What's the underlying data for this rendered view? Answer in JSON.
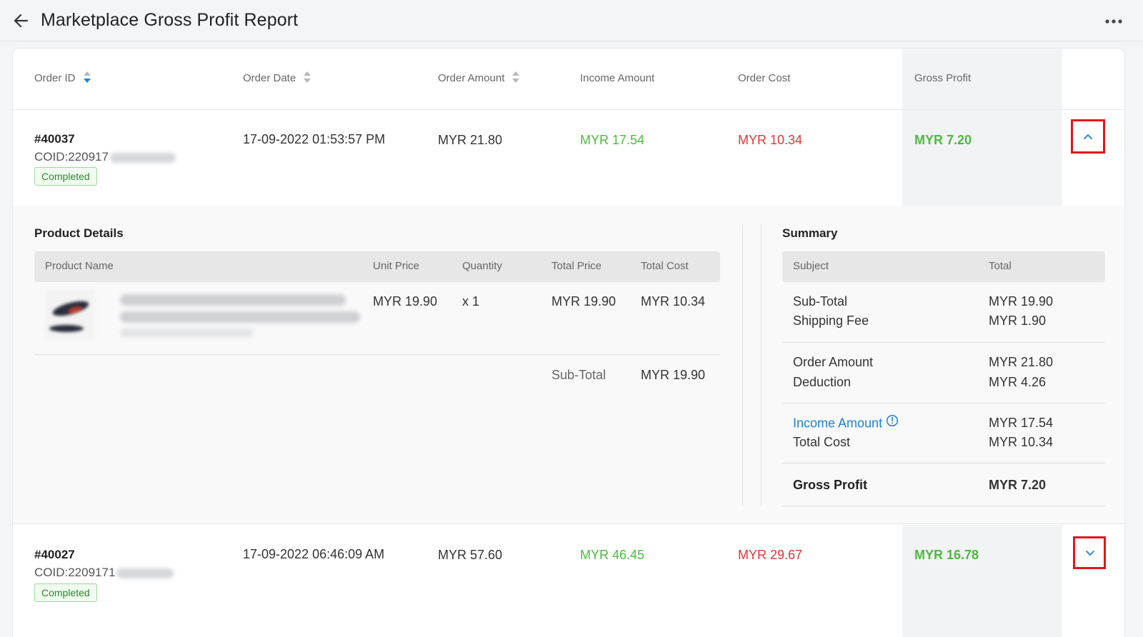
{
  "header": {
    "title": "Marketplace Gross Profit Report"
  },
  "columns": {
    "order_id": "Order ID",
    "order_date": "Order Date",
    "order_amount": "Order Amount",
    "income_amount": "Income Amount",
    "order_cost": "Order Cost",
    "gross_profit": "Gross Profit"
  },
  "orders": [
    {
      "id": "#40037",
      "coid": "COID:220917",
      "status": "Completed",
      "date": "17-09-2022 01:53:57 PM",
      "amount": "MYR 21.80",
      "income": "MYR 17.54",
      "cost": "MYR 10.34",
      "gross_profit": "MYR 7.20",
      "expanded": true
    },
    {
      "id": "#40027",
      "coid": "COID:2209171",
      "status": "Completed",
      "date": "17-09-2022 06:46:09 AM",
      "amount": "MYR 57.60",
      "income": "MYR 46.45",
      "cost": "MYR 29.67",
      "gross_profit": "MYR 16.78",
      "expanded": false
    }
  ],
  "product_details": {
    "title": "Product Details",
    "columns": {
      "name": "Product Name",
      "unit_price": "Unit Price",
      "quantity": "Quantity",
      "total_price": "Total Price",
      "total_cost": "Total Cost"
    },
    "items": [
      {
        "unit_price": "MYR 19.90",
        "quantity": "x 1",
        "total_price": "MYR 19.90",
        "total_cost": "MYR 10.34"
      }
    ],
    "subtotal_label": "Sub-Total",
    "subtotal_value": "MYR 19.90"
  },
  "summary": {
    "title": "Summary",
    "col_subject": "Subject",
    "col_total": "Total",
    "sub_total_label": "Sub-Total",
    "sub_total_value": "MYR 19.90",
    "shipping_label": "Shipping Fee",
    "shipping_value": "MYR 1.90",
    "order_amount_label": "Order Amount",
    "order_amount_value": "MYR 21.80",
    "deduction_label": "Deduction",
    "deduction_value": "MYR 4.26",
    "income_label": "Income Amount",
    "income_value": "MYR 17.54",
    "total_cost_label": "Total Cost",
    "total_cost_value": "MYR 10.34",
    "gross_profit_label": "Gross Profit",
    "gross_profit_value": "MYR 7.20"
  },
  "colors": {
    "green": "#4cbb3f",
    "red": "#e23535",
    "blue": "#1a82d6",
    "highlight": "#e0161c"
  }
}
